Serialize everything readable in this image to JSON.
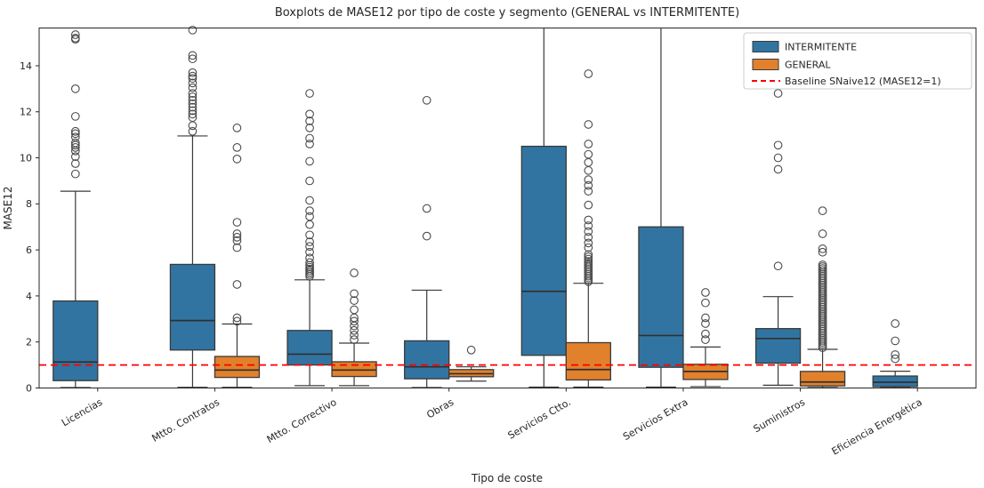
{
  "title": "Boxplots de MASE12 por tipo de coste y segmento (GENERAL vs INTERMITENTE)",
  "xlabel": "Tipo de coste",
  "ylabel": "MASE12",
  "colors": {
    "intermitente": "#3274a1",
    "general": "#e1812c",
    "baseline": "#ff0000",
    "box_edge": "#3a3a3a",
    "axis": "#262626"
  },
  "legend": {
    "items": [
      {
        "label": "INTERMITENTE"
      },
      {
        "label": "GENERAL"
      },
      {
        "label": "Baseline SNaive12 (MASE12=1)"
      }
    ]
  },
  "chart_data": {
    "type": "boxplot",
    "title": "Boxplots de MASE12 por tipo de coste y segmento (GENERAL vs INTERMITENTE)",
    "xlabel": "Tipo de coste",
    "ylabel": "MASE12",
    "ylim": [
      0,
      15.64
    ],
    "yticks": [
      0,
      2,
      4,
      6,
      8,
      10,
      12,
      14
    ],
    "grid": false,
    "legend_position": "upper right",
    "baseline": {
      "label": "Baseline SNaive12 (MASE12=1)",
      "value": 1
    },
    "categories": [
      "Licencias",
      "Mtto. Contratos",
      "Mtto. Correctivo",
      "Obras",
      "Servicios Ctto.",
      "Servicios Extra",
      "Suministros",
      "Eficiencia Energética"
    ],
    "series": [
      {
        "name": "INTERMITENTE",
        "color": "#3274a1",
        "boxes": [
          {
            "q1": 0.32,
            "median": 1.13,
            "q3": 3.78,
            "whisker_low": 0.02,
            "whisker_high": 8.55,
            "outliers": [
              9.3,
              9.75,
              10.05,
              10.3,
              10.45,
              10.55,
              10.65,
              10.9,
              11.05,
              11.15,
              11.8,
              13.0,
              15.15,
              15.2,
              15.35
            ]
          },
          {
            "q1": 1.65,
            "median": 2.93,
            "q3": 5.37,
            "whisker_low": 0.03,
            "whisker_high": 10.95,
            "outliers": [
              11.15,
              11.4,
              11.75,
              11.9,
              12.05,
              12.2,
              12.35,
              12.5,
              12.65,
              12.8,
              13.05,
              13.25,
              13.45,
              13.55,
              13.7,
              14.3,
              14.45,
              15.55
            ]
          },
          {
            "q1": 1.0,
            "median": 1.47,
            "q3": 2.5,
            "whisker_low": 0.1,
            "whisker_high": 4.7,
            "outliers": [
              4.85,
              4.93,
              5.01,
              5.09,
              5.17,
              5.25,
              5.33,
              5.45,
              5.65,
              5.9,
              6.15,
              6.35,
              6.65,
              7.1,
              7.45,
              7.7,
              8.15,
              9.0,
              9.85,
              10.6,
              10.85,
              11.3,
              11.6,
              11.9,
              12.8
            ]
          },
          {
            "q1": 0.4,
            "median": 0.92,
            "q3": 2.05,
            "whisker_low": 0.02,
            "whisker_high": 4.25,
            "outliers": [
              6.6,
              7.8,
              12.5
            ]
          },
          {
            "q1": 1.42,
            "median": 4.2,
            "q3": 10.5,
            "whisker_low": 0.04,
            "whisker_high": 16.5,
            "outliers": []
          },
          {
            "q1": 0.9,
            "median": 2.28,
            "q3": 7.0,
            "whisker_low": 0.04,
            "whisker_high": 16.5,
            "outliers": []
          },
          {
            "q1": 1.08,
            "median": 2.15,
            "q3": 2.58,
            "whisker_low": 0.12,
            "whisker_high": 3.97,
            "outliers": [
              5.3,
              9.5,
              10.0,
              10.55,
              12.8
            ]
          },
          {
            "q1": 0.06,
            "median": 0.25,
            "q3": 0.52,
            "whisker_low": 0.01,
            "whisker_high": 0.73,
            "outliers": [
              1.27,
              1.45,
              2.05,
              2.8
            ]
          }
        ]
      },
      {
        "name": "GENERAL",
        "color": "#e1812c",
        "boxes": [
          null,
          {
            "q1": 0.46,
            "median": 0.78,
            "q3": 1.37,
            "whisker_low": 0.03,
            "whisker_high": 2.78,
            "outliers": [
              2.9,
              3.05,
              4.5,
              6.1,
              6.4,
              6.55,
              6.7,
              7.2,
              9.95,
              10.45,
              11.3
            ]
          },
          {
            "q1": 0.5,
            "median": 0.78,
            "q3": 1.14,
            "whisker_low": 0.1,
            "whisker_high": 1.95,
            "outliers": [
              2.1,
              2.3,
              2.5,
              2.7,
              2.9,
              3.05,
              3.4,
              3.8,
              4.1,
              5.0
            ]
          },
          {
            "q1": 0.49,
            "median": 0.62,
            "q3": 0.8,
            "whisker_low": 0.3,
            "whisker_high": 0.92,
            "outliers": [
              1.65
            ]
          },
          {
            "q1": 0.35,
            "median": 0.8,
            "q3": 1.97,
            "whisker_low": 0.04,
            "whisker_high": 4.55,
            "outliers": [
              4.62,
              4.7,
              4.78,
              4.86,
              4.94,
              5.02,
              5.1,
              5.18,
              5.26,
              5.34,
              5.42,
              5.5,
              5.6,
              5.7,
              5.8,
              6.1,
              6.3,
              6.55,
              6.8,
              7.05,
              7.3,
              7.95,
              8.55,
              8.8,
              9.05,
              9.45,
              9.8,
              10.15,
              10.6,
              11.45,
              13.65
            ]
          },
          {
            "q1": 0.37,
            "median": 0.72,
            "q3": 1.03,
            "whisker_low": 0.06,
            "whisker_high": 1.78,
            "outliers": [
              2.1,
              2.35,
              2.8,
              3.05,
              3.7,
              4.15
            ]
          },
          {
            "q1": 0.09,
            "median": 0.26,
            "q3": 0.72,
            "whisker_low": 0.02,
            "whisker_high": 1.68,
            "outliers": [
              1.75,
              1.83,
              1.91,
              1.99,
              2.07,
              2.15,
              2.23,
              2.31,
              2.39,
              2.47,
              2.55,
              2.63,
              2.71,
              2.79,
              2.87,
              2.95,
              3.03,
              3.11,
              3.19,
              3.27,
              3.35,
              3.43,
              3.51,
              3.59,
              3.67,
              3.75,
              3.83,
              3.91,
              3.99,
              4.07,
              4.15,
              4.23,
              4.31,
              4.39,
              4.47,
              4.55,
              4.63,
              4.71,
              4.79,
              4.87,
              4.95,
              5.03,
              5.11,
              5.19,
              5.27,
              5.35,
              5.9,
              6.05,
              6.7,
              7.7
            ]
          },
          null
        ]
      }
    ]
  }
}
